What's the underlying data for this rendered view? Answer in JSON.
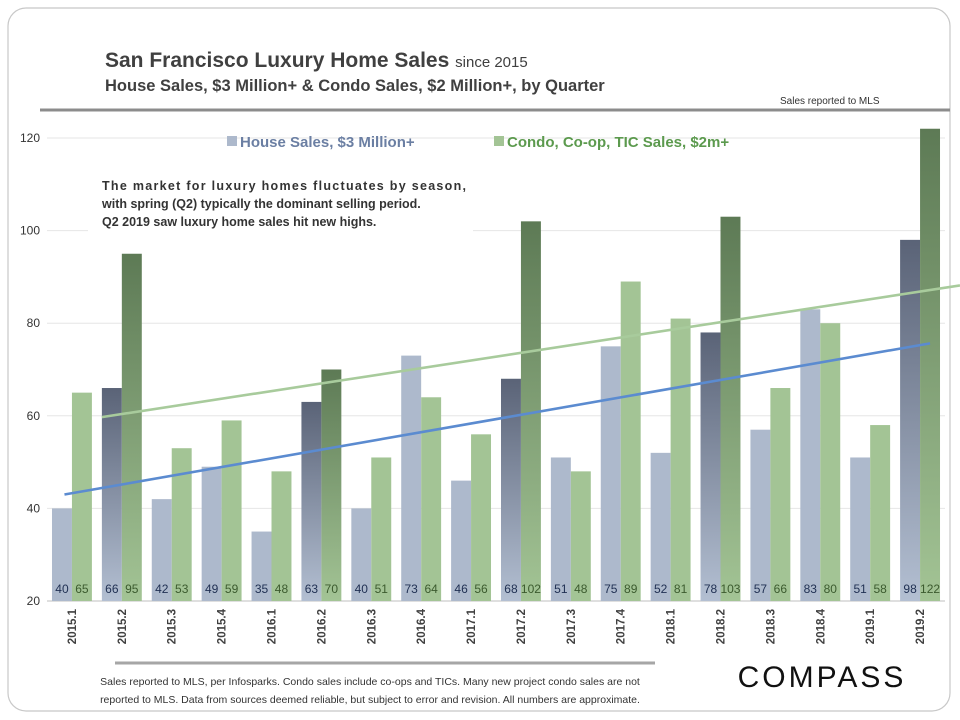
{
  "header": {
    "title": "San Francisco Luxury Home Sales",
    "title_suffix": "since 2015",
    "subtitle": "House Sales, $3 Million+ & Condo Sales, $2 Million+, by Quarter",
    "source_note": "Sales reported to MLS"
  },
  "annotation": [
    "The market for luxury homes fluctuates by season,",
    "with spring (Q2) typically the dominant selling period.",
    "Q2 2019 saw luxury home sales hit new highs."
  ],
  "footer": {
    "lines": [
      "Sales reported to MLS, per Infosparks.  Condo sales include co-ops and TICs. Many new project condo sales are not",
      "reported to MLS. Data from sources deemed reliable, but subject to error and revision. All numbers are approximate."
    ],
    "logo": "COMPASS"
  },
  "colors": {
    "house": "#adb9cc",
    "house_q2_dark": "#5a6377",
    "condo": "#a3c495",
    "condo_q2_dark": "#5d7a55",
    "house_trend": "#5b8bd0",
    "condo_trend": "#a8cb9c",
    "house_label": "#1f2f52",
    "condo_label": "#3b5a2e"
  },
  "chart_data": {
    "type": "bar",
    "categories": [
      "2015.1",
      "2015.2",
      "2015.3",
      "2015.4",
      "2016.1",
      "2016.2",
      "2016.3",
      "2016.4",
      "2017.1",
      "2017.2",
      "2017.3",
      "2017.4",
      "2018.1",
      "2018.2",
      "2018.3",
      "2018.4",
      "2019.1",
      "2019.2"
    ],
    "series": [
      {
        "name": "House Sales, $3 Million+",
        "values": [
          40,
          66,
          42,
          49,
          35,
          63,
          40,
          73,
          46,
          68,
          51,
          75,
          52,
          78,
          57,
          83,
          51,
          98
        ]
      },
      {
        "name": "Condo, Co-op, TIC Sales, $2m+",
        "values": [
          65,
          95,
          53,
          59,
          48,
          70,
          51,
          64,
          56,
          102,
          48,
          89,
          81,
          103,
          66,
          80,
          58,
          122
        ]
      }
    ],
    "highlight": "Q2 bars shaded darker",
    "trendlines": "linear, one per series",
    "ylim": [
      20,
      122
    ],
    "yticks": [
      20,
      40,
      60,
      80,
      100,
      120
    ],
    "grid": true,
    "legend": "top-center",
    "data_labels": "at bar base"
  }
}
